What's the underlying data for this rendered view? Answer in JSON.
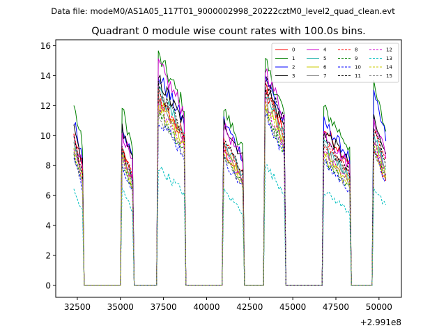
{
  "figure": {
    "suptitle": "Data file: modeM0/AS1A05_117T01_9000002998_20222cztM0_level2_quad_clean.evt"
  },
  "chart_data": {
    "type": "line",
    "title": "Quadrant 0 module wise count rates with 100.0s bins.",
    "xlabel": "",
    "ylabel": "",
    "x_offset_label": "+2.991e8",
    "xlim": [
      31250,
      51300
    ],
    "ylim": [
      -0.8,
      16.4
    ],
    "x_ticks": [
      32500,
      35000,
      37500,
      40000,
      42500,
      45000,
      47500,
      50000
    ],
    "x_tick_labels": [
      "32500",
      "35000",
      "37500",
      "40000",
      "42500",
      "45000",
      "47500",
      "50000"
    ],
    "y_ticks": [
      0,
      2,
      4,
      6,
      8,
      10,
      12,
      14,
      16
    ],
    "y_tick_labels": [
      "0",
      "2",
      "4",
      "6",
      "8",
      "10",
      "12",
      "14",
      "16"
    ],
    "grid": false,
    "legend_position": "top-right",
    "segments": [
      {
        "start": 32300,
        "end": 32800
      },
      {
        "start": 35100,
        "end": 35700
      },
      {
        "start": 37200,
        "end": 38700
      },
      {
        "start": 41000,
        "end": 42100
      },
      {
        "start": 43400,
        "end": 44500
      },
      {
        "start": 46800,
        "end": 48300
      },
      {
        "start": 49700,
        "end": 50400
      }
    ],
    "series": [
      {
        "name": "0",
        "color": "#ff0000",
        "dash": "solid",
        "values": [
          10.0,
          9.0,
          12.5,
          9.0,
          13.2,
          10.5,
          9.0
        ]
      },
      {
        "name": "1",
        "color": "#008000",
        "dash": "solid",
        "values": [
          12.0,
          11.8,
          15.3,
          11.7,
          14.8,
          11.8,
          13.2
        ]
      },
      {
        "name": "2",
        "color": "#0000ff",
        "dash": "solid",
        "values": [
          11.0,
          10.8,
          14.0,
          11.0,
          14.0,
          10.9,
          12.6
        ]
      },
      {
        "name": "3",
        "color": "#000000",
        "dash": "solid",
        "values": [
          10.5,
          10.6,
          13.8,
          10.9,
          13.5,
          10.4,
          11.0
        ]
      },
      {
        "name": "4",
        "color": "#cc00cc",
        "dash": "solid",
        "values": [
          10.2,
          10.3,
          14.8,
          10.6,
          14.5,
          10.2,
          11.2
        ]
      },
      {
        "name": "5",
        "color": "#20b2aa",
        "dash": "solid",
        "values": [
          9.6,
          9.0,
          13.0,
          9.5,
          12.8,
          9.4,
          10.0
        ]
      },
      {
        "name": "6",
        "color": "#c8c800",
        "dash": "solid",
        "values": [
          9.2,
          8.6,
          12.3,
          9.2,
          12.2,
          8.9,
          9.5
        ]
      },
      {
        "name": "7",
        "color": "#808080",
        "dash": "solid",
        "values": [
          9.4,
          8.8,
          12.6,
          9.4,
          12.5,
          9.1,
          9.8
        ]
      },
      {
        "name": "8",
        "color": "#ff0000",
        "dash": "dashed",
        "values": [
          9.8,
          9.2,
          12.8,
          9.6,
          12.9,
          9.6,
          10.3
        ]
      },
      {
        "name": "9",
        "color": "#008000",
        "dash": "dashed",
        "values": [
          8.6,
          8.3,
          11.6,
          8.7,
          11.6,
          8.4,
          9.2
        ]
      },
      {
        "name": "10",
        "color": "#0000ff",
        "dash": "dashed",
        "values": [
          8.4,
          8.1,
          11.2,
          8.4,
          11.3,
          8.2,
          8.9
        ]
      },
      {
        "name": "11",
        "color": "#000000",
        "dash": "dashed",
        "values": [
          9.6,
          9.1,
          13.2,
          9.8,
          13.8,
          9.7,
          10.4
        ]
      },
      {
        "name": "12",
        "color": "#cc00cc",
        "dash": "dashed",
        "values": [
          9.0,
          8.7,
          12.0,
          9.0,
          12.1,
          8.8,
          9.6
        ]
      },
      {
        "name": "13",
        "color": "#00bfbf",
        "dash": "dashed",
        "values": [
          6.3,
          6.4,
          7.9,
          6.3,
          8.0,
          6.3,
          6.6
        ]
      },
      {
        "name": "14",
        "color": "#c8c800",
        "dash": "dashed",
        "values": [
          8.9,
          8.5,
          11.8,
          8.8,
          11.9,
          8.6,
          9.3
        ]
      },
      {
        "name": "15",
        "color": "#808080",
        "dash": "dashed",
        "values": [
          8.7,
          8.4,
          11.4,
          8.6,
          11.5,
          8.5,
          9.1
        ]
      }
    ]
  }
}
